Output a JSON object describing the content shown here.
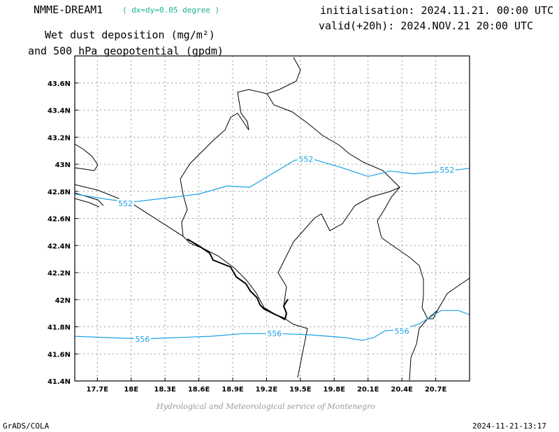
{
  "header": {
    "model": "NMME-DREAM1",
    "resolution": "( dx=dy=0.05 degree )",
    "product_line1": "Wet dust deposition (mg/m²)",
    "product_line2": "and 500 hPa geopotential (gpdm)",
    "initialisation": "initialisation: 2024.11.21. 00:00 UTC",
    "valid": "valid(+20h): 2024.NOV.21 20:00 UTC"
  },
  "map": {
    "lon_range": [
      17.5,
      21.0
    ],
    "lat_range": [
      41.4,
      43.8
    ],
    "x_ticks": [
      "17.7E",
      "18E",
      "18.3E",
      "18.6E",
      "18.9E",
      "19.2E",
      "19.5E",
      "19.8E",
      "20.1E",
      "20.4E",
      "20.7E"
    ],
    "x_tick_values": [
      17.7,
      18.0,
      18.3,
      18.6,
      18.9,
      19.2,
      19.5,
      19.8,
      20.1,
      20.4,
      20.7
    ],
    "y_ticks": [
      "41.4N",
      "41.6N",
      "41.8N",
      "42N",
      "42.2N",
      "42.4N",
      "42.6N",
      "42.8N",
      "43N",
      "43.2N",
      "43.4N",
      "43.6N"
    ],
    "y_tick_values": [
      41.4,
      41.6,
      41.8,
      42.0,
      42.2,
      42.4,
      42.6,
      42.8,
      43.0,
      43.2,
      43.4,
      43.6
    ],
    "grid": "dotted",
    "contour_color": "#1aa0e6",
    "border_color": "#000000",
    "contours": [
      {
        "label": "552",
        "label_positions": [
          [
            17.95,
            42.71
          ],
          [
            19.55,
            43.04
          ],
          [
            20.8,
            42.96
          ]
        ],
        "points": [
          [
            17.5,
            42.78
          ],
          [
            17.8,
            42.74
          ],
          [
            18.0,
            42.72
          ],
          [
            18.2,
            42.74
          ],
          [
            18.4,
            42.76
          ],
          [
            18.6,
            42.78
          ],
          [
            18.85,
            42.84
          ],
          [
            19.05,
            42.83
          ],
          [
            19.25,
            42.93
          ],
          [
            19.45,
            43.03
          ],
          [
            19.6,
            43.04
          ],
          [
            19.85,
            42.98
          ],
          [
            20.1,
            42.91
          ],
          [
            20.3,
            42.95
          ],
          [
            20.5,
            42.93
          ],
          [
            20.8,
            42.95
          ],
          [
            21.0,
            42.97
          ]
        ]
      },
      {
        "label": "556",
        "label_positions": [
          [
            18.1,
            41.71
          ],
          [
            19.27,
            41.75
          ],
          [
            20.4,
            41.77
          ]
        ],
        "points": [
          [
            17.5,
            41.73
          ],
          [
            17.8,
            41.72
          ],
          [
            18.1,
            41.71
          ],
          [
            18.4,
            41.72
          ],
          [
            18.7,
            41.73
          ],
          [
            19.0,
            41.75
          ],
          [
            19.3,
            41.75
          ],
          [
            19.6,
            41.74
          ],
          [
            19.9,
            41.72
          ],
          [
            20.05,
            41.7
          ],
          [
            20.15,
            41.72
          ],
          [
            20.25,
            41.77
          ],
          [
            20.4,
            41.78
          ],
          [
            20.55,
            41.82
          ],
          [
            20.75,
            41.92
          ],
          [
            20.9,
            41.92
          ],
          [
            21.0,
            41.89
          ]
        ]
      }
    ]
  },
  "footer": {
    "credit": "Hydrological and Meteorological service of Montenegro",
    "software": "GrADS/COLA",
    "timestamp": "2024-11-21-13:17"
  }
}
